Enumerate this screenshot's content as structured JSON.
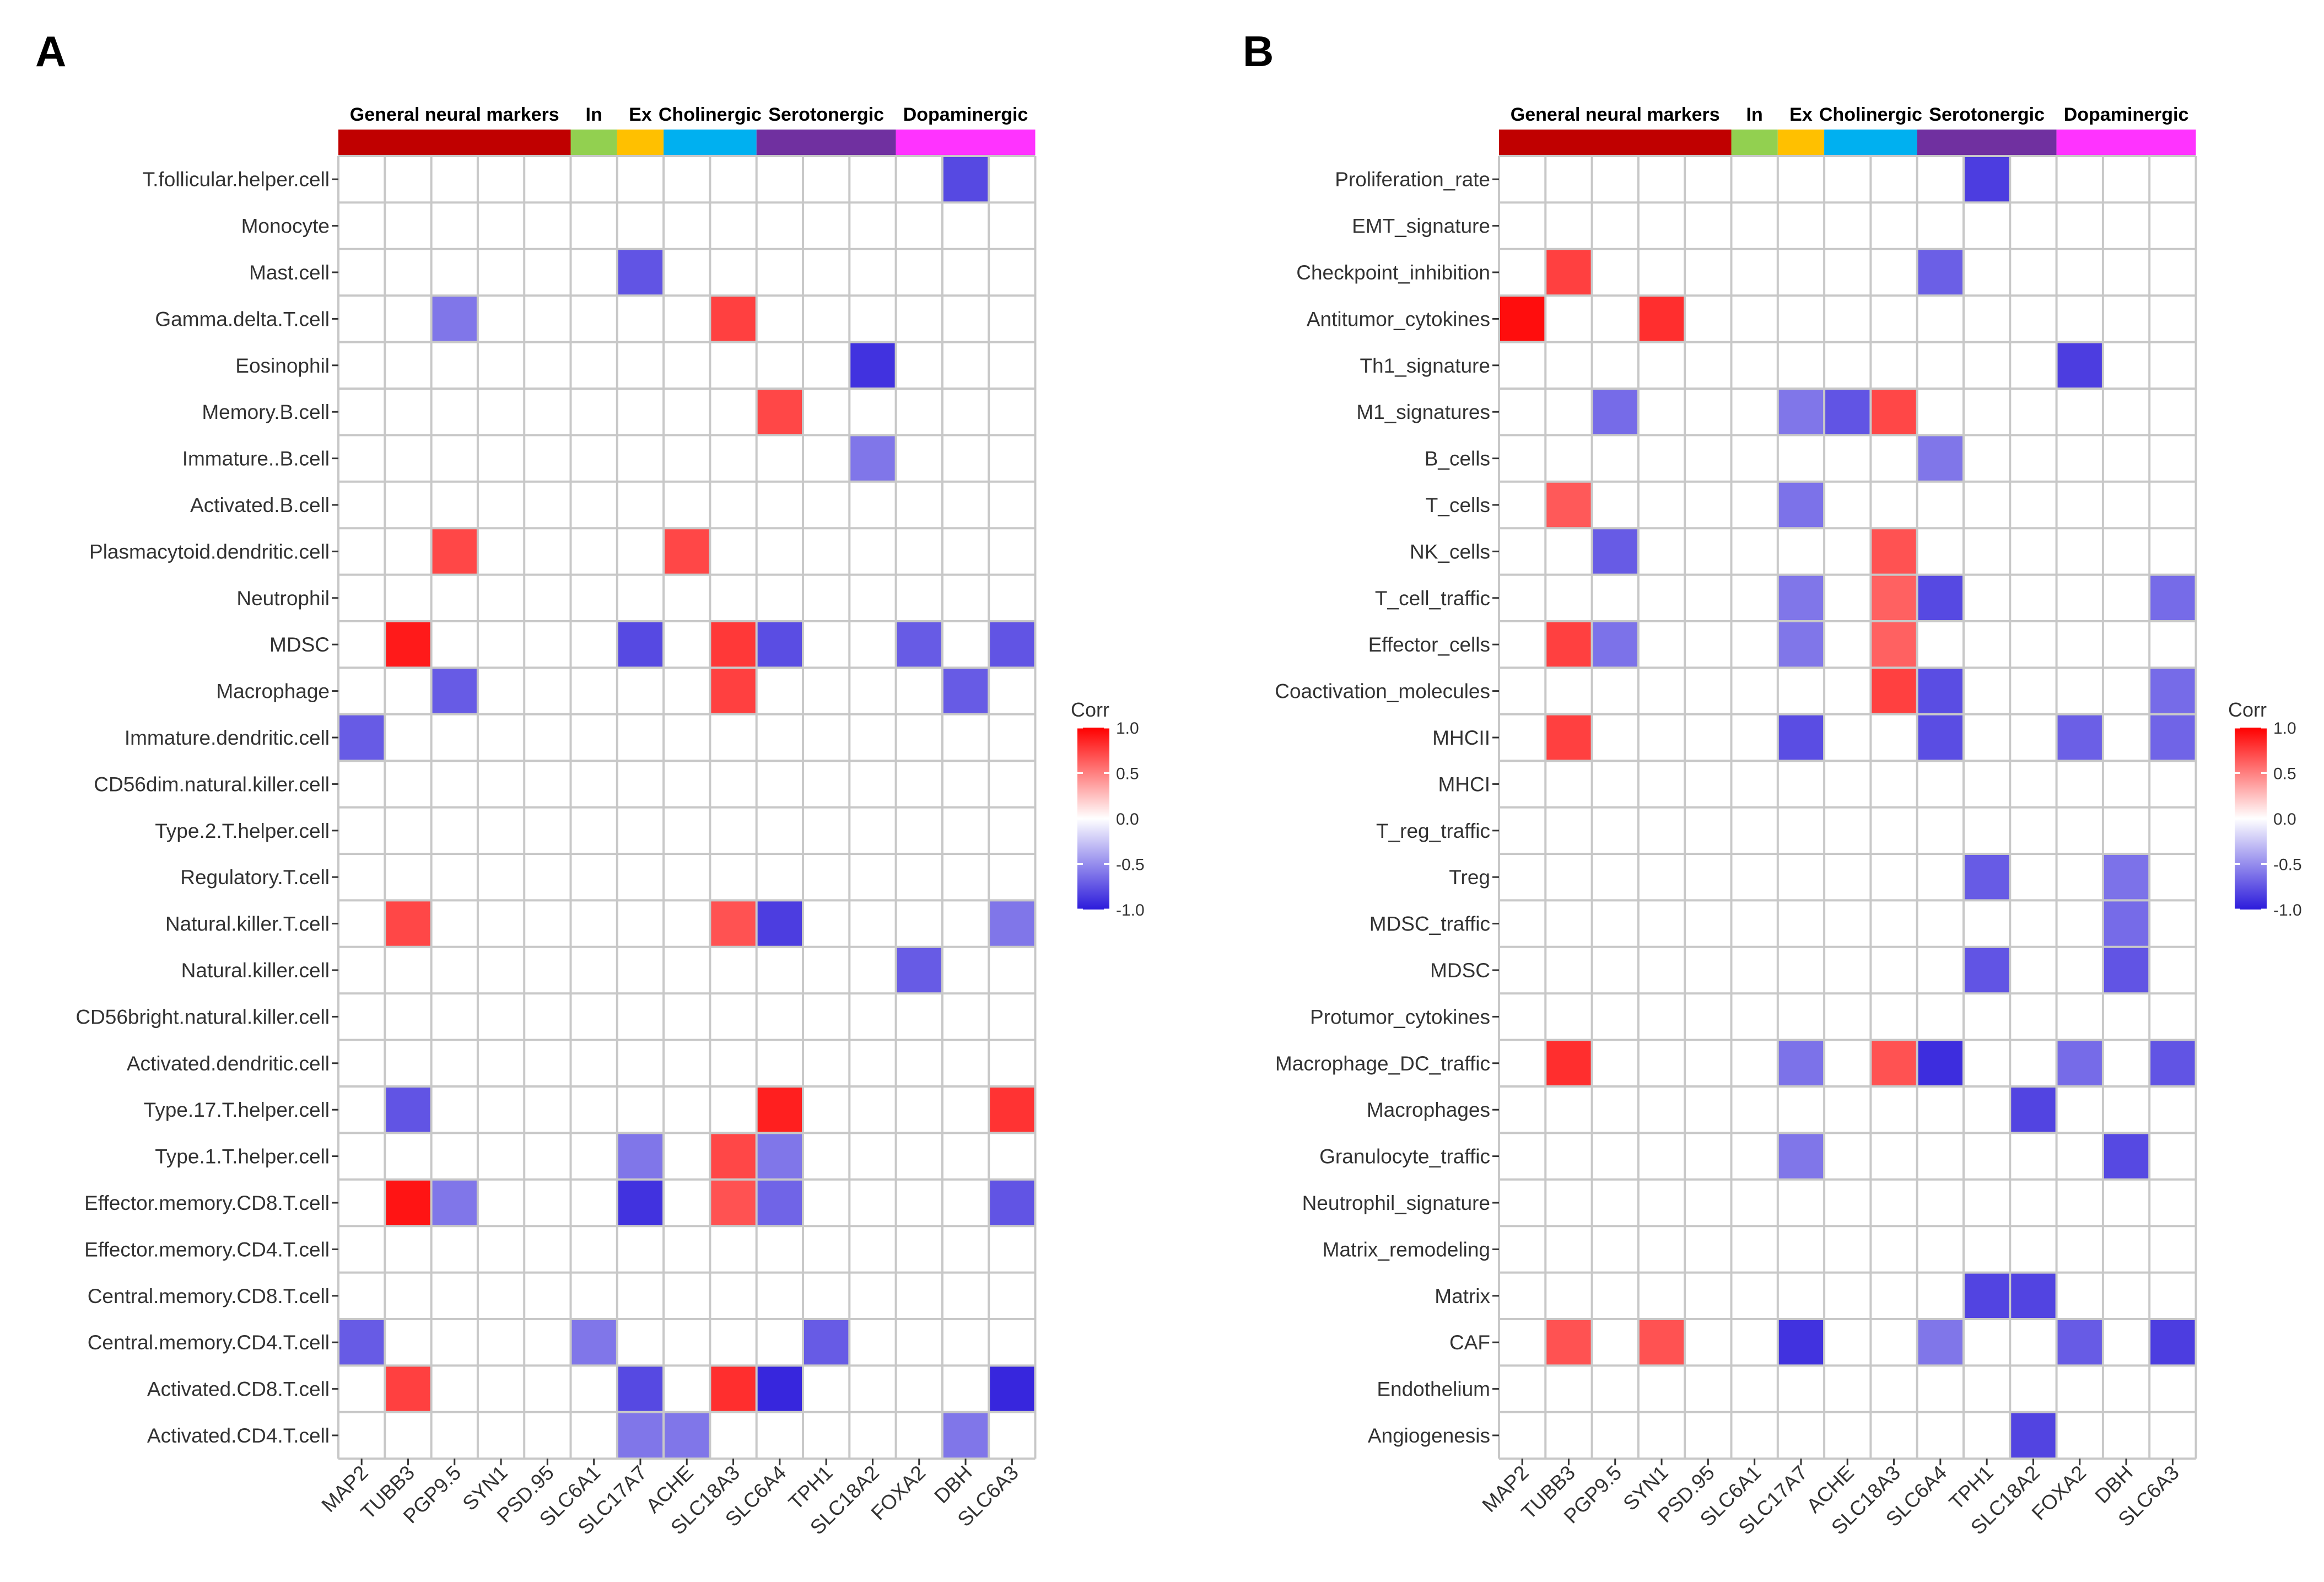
{
  "chart_data": [
    {
      "type": "heatmap",
      "panel_label": "A",
      "groups": [
        {
          "name": "General neural markers",
          "color": "#C00000",
          "genes": [
            "MAP2",
            "TUBB3",
            "PGP9.5",
            "SYN1",
            "PSD.95"
          ]
        },
        {
          "name": "In",
          "color": "#92D050",
          "genes": [
            "SLC6A1"
          ]
        },
        {
          "name": "Ex",
          "color": "#FFC000",
          "genes": [
            "SLC17A7"
          ]
        },
        {
          "name": "Cholinergic",
          "color": "#00B0F0",
          "genes": [
            "ACHE",
            "SLC18A3"
          ]
        },
        {
          "name": "Serotonergic",
          "color": "#7030A0",
          "genes": [
            "SLC6A4",
            "TPH1",
            "SLC18A2"
          ]
        },
        {
          "name": "Dopaminergic",
          "color": "#FF33FF",
          "genes": [
            "FOXA2",
            "DBH",
            "SLC6A3"
          ]
        }
      ],
      "columns": [
        "MAP2",
        "TUBB3",
        "PGP9.5",
        "SYN1",
        "PSD.95",
        "SLC6A1",
        "SLC17A7",
        "ACHE",
        "SLC18A3",
        "SLC6A4",
        "TPH1",
        "SLC18A2",
        "FOXA2",
        "DBH",
        "SLC6A3"
      ],
      "rows": [
        "T.follicular.helper.cell",
        "Monocyte",
        "Mast.cell",
        "Gamma.delta.T.cell",
        "Eosinophil",
        "Memory.B.cell",
        "Immature..B.cell",
        "Activated.B.cell",
        "Plasmacytoid.dendritic.cell",
        "Neutrophil",
        "MDSC",
        "Macrophage",
        "Immature.dendritic.cell",
        "CD56dim.natural.killer.cell",
        "Type.2.T.helper.cell",
        "Regulatory.T.cell",
        "Natural.killer.T.cell",
        "Natural.killer.cell",
        "CD56bright.natural.killer.cell",
        "Activated.dendritic.cell",
        "Type.17.T.helper.cell",
        "Type.1.T.helper.cell",
        "Effector.memory.CD8.T.cell",
        "Effector.memory.CD4.T.cell",
        "Central.memory.CD8.T.cell",
        "Central.memory.CD4.T.cell",
        "Activated.CD8.T.cell",
        "Activated.CD4.T.cell"
      ],
      "cells": [
        {
          "row": "T.follicular.helper.cell",
          "col": "DBH",
          "value": -0.8
        },
        {
          "row": "Mast.cell",
          "col": "SLC17A7",
          "value": -0.75
        },
        {
          "row": "Gamma.delta.T.cell",
          "col": "PGP9.5",
          "value": -0.6
        },
        {
          "row": "Gamma.delta.T.cell",
          "col": "SLC18A3",
          "value": 0.75
        },
        {
          "row": "Eosinophil",
          "col": "SLC18A2",
          "value": -0.9
        },
        {
          "row": "Memory.B.cell",
          "col": "SLC6A4",
          "value": 0.72
        },
        {
          "row": "Immature..B.cell",
          "col": "SLC18A2",
          "value": -0.6
        },
        {
          "row": "Plasmacytoid.dendritic.cell",
          "col": "PGP9.5",
          "value": 0.72
        },
        {
          "row": "Plasmacytoid.dendritic.cell",
          "col": "ACHE",
          "value": 0.72
        },
        {
          "row": "MDSC",
          "col": "TUBB3",
          "value": 0.9
        },
        {
          "row": "MDSC",
          "col": "SLC17A7",
          "value": -0.8
        },
        {
          "row": "MDSC",
          "col": "SLC18A3",
          "value": 0.78
        },
        {
          "row": "MDSC",
          "col": "SLC6A4",
          "value": -0.78
        },
        {
          "row": "MDSC",
          "col": "FOXA2",
          "value": -0.72
        },
        {
          "row": "MDSC",
          "col": "SLC6A3",
          "value": -0.75
        },
        {
          "row": "Macrophage",
          "col": "PGP9.5",
          "value": -0.72
        },
        {
          "row": "Macrophage",
          "col": "SLC18A3",
          "value": 0.75
        },
        {
          "row": "Macrophage",
          "col": "DBH",
          "value": -0.72
        },
        {
          "row": "Immature.dendritic.cell",
          "col": "MAP2",
          "value": -0.72
        },
        {
          "row": "Natural.killer.T.cell",
          "col": "TUBB3",
          "value": 0.72
        },
        {
          "row": "Natural.killer.T.cell",
          "col": "SLC18A3",
          "value": 0.68
        },
        {
          "row": "Natural.killer.T.cell",
          "col": "SLC6A4",
          "value": -0.85
        },
        {
          "row": "Natural.killer.T.cell",
          "col": "SLC6A3",
          "value": -0.6
        },
        {
          "row": "Natural.killer.cell",
          "col": "FOXA2",
          "value": -0.72
        },
        {
          "row": "Type.17.T.helper.cell",
          "col": "TUBB3",
          "value": -0.75
        },
        {
          "row": "Type.17.T.helper.cell",
          "col": "SLC6A4",
          "value": 0.88
        },
        {
          "row": "Type.17.T.helper.cell",
          "col": "SLC6A3",
          "value": 0.8
        },
        {
          "row": "Type.1.T.helper.cell",
          "col": "SLC17A7",
          "value": -0.6
        },
        {
          "row": "Type.1.T.helper.cell",
          "col": "SLC18A3",
          "value": 0.72
        },
        {
          "row": "Type.1.T.helper.cell",
          "col": "SLC6A4",
          "value": -0.6
        },
        {
          "row": "Effector.memory.CD8.T.cell",
          "col": "TUBB3",
          "value": 0.92
        },
        {
          "row": "Effector.memory.CD8.T.cell",
          "col": "PGP9.5",
          "value": -0.6
        },
        {
          "row": "Effector.memory.CD8.T.cell",
          "col": "SLC17A7",
          "value": -0.9
        },
        {
          "row": "Effector.memory.CD8.T.cell",
          "col": "SLC18A3",
          "value": 0.68
        },
        {
          "row": "Effector.memory.CD8.T.cell",
          "col": "SLC6A4",
          "value": -0.68
        },
        {
          "row": "Effector.memory.CD8.T.cell",
          "col": "SLC6A3",
          "value": -0.75
        },
        {
          "row": "Central.memory.CD4.T.cell",
          "col": "MAP2",
          "value": -0.72
        },
        {
          "row": "Central.memory.CD4.T.cell",
          "col": "SLC6A1",
          "value": -0.6
        },
        {
          "row": "Central.memory.CD4.T.cell",
          "col": "TPH1",
          "value": -0.72
        },
        {
          "row": "Activated.CD8.T.cell",
          "col": "TUBB3",
          "value": 0.75
        },
        {
          "row": "Activated.CD8.T.cell",
          "col": "SLC17A7",
          "value": -0.8
        },
        {
          "row": "Activated.CD8.T.cell",
          "col": "SLC18A3",
          "value": 0.82
        },
        {
          "row": "Activated.CD8.T.cell",
          "col": "SLC6A4",
          "value": -0.95
        },
        {
          "row": "Activated.CD8.T.cell",
          "col": "SLC6A3",
          "value": -0.95
        },
        {
          "row": "Activated.CD4.T.cell",
          "col": "SLC17A7",
          "value": -0.6
        },
        {
          "row": "Activated.CD4.T.cell",
          "col": "ACHE",
          "value": -0.6
        },
        {
          "row": "Activated.CD4.T.cell",
          "col": "DBH",
          "value": -0.6
        }
      ],
      "legend": {
        "title": "Corr",
        "ticks": [
          "1.0",
          "0.5",
          "0.0",
          "-0.5",
          "-1.0"
        ],
        "range": [
          -1,
          1
        ],
        "colors": {
          "low": "#2C1BDB",
          "mid": "#FFFFFF",
          "high": "#FF0000"
        }
      }
    },
    {
      "type": "heatmap",
      "panel_label": "B",
      "groups": [
        {
          "name": "General neural markers",
          "color": "#C00000",
          "genes": [
            "MAP2",
            "TUBB3",
            "PGP9.5",
            "SYN1",
            "PSD.95"
          ]
        },
        {
          "name": "In",
          "color": "#92D050",
          "genes": [
            "SLC6A1"
          ]
        },
        {
          "name": "Ex",
          "color": "#FFC000",
          "genes": [
            "SLC17A7"
          ]
        },
        {
          "name": "Cholinergic",
          "color": "#00B0F0",
          "genes": [
            "ACHE",
            "SLC18A3"
          ]
        },
        {
          "name": "Serotonergic",
          "color": "#7030A0",
          "genes": [
            "SLC6A4",
            "TPH1",
            "SLC18A2"
          ]
        },
        {
          "name": "Dopaminergic",
          "color": "#FF33FF",
          "genes": [
            "FOXA2",
            "DBH",
            "SLC6A3"
          ]
        }
      ],
      "columns": [
        "MAP2",
        "TUBB3",
        "PGP9.5",
        "SYN1",
        "PSD.95",
        "SLC6A1",
        "SLC17A7",
        "ACHE",
        "SLC18A3",
        "SLC6A4",
        "TPH1",
        "SLC18A2",
        "FOXA2",
        "DBH",
        "SLC6A3"
      ],
      "rows": [
        "Proliferation_rate",
        "EMT_signature",
        "Checkpoint_inhibition",
        "Antitumor_cytokines",
        "Th1_signature",
        "M1_signatures",
        "B_cells",
        "T_cells",
        "NK_cells",
        "T_cell_traffic",
        "Effector_cells",
        "Coactivation_molecules",
        "MHCII",
        "MHCI",
        "T_reg_traffic",
        "Treg",
        "MDSC_traffic",
        "MDSC",
        "Protumor_cytokines",
        "Macrophage_DC_traffic",
        "Macrophages",
        "Granulocyte_traffic",
        "Neutrophil_signature",
        "Matrix_remodeling",
        "Matrix",
        "CAF",
        "Endothelium",
        "Angiogenesis"
      ],
      "cells": [
        {
          "row": "Proliferation_rate",
          "col": "TPH1",
          "value": -0.85
        },
        {
          "row": "Checkpoint_inhibition",
          "col": "TUBB3",
          "value": 0.75
        },
        {
          "row": "Checkpoint_inhibition",
          "col": "SLC6A4",
          "value": -0.7
        },
        {
          "row": "Antitumor_cytokines",
          "col": "MAP2",
          "value": 0.95
        },
        {
          "row": "Antitumor_cytokines",
          "col": "SYN1",
          "value": 0.82
        },
        {
          "row": "Th1_signature",
          "col": "FOXA2",
          "value": -0.85
        },
        {
          "row": "M1_signatures",
          "col": "PGP9.5",
          "value": -0.65
        },
        {
          "row": "M1_signatures",
          "col": "SLC17A7",
          "value": -0.6
        },
        {
          "row": "M1_signatures",
          "col": "ACHE",
          "value": -0.75
        },
        {
          "row": "M1_signatures",
          "col": "SLC18A3",
          "value": 0.72
        },
        {
          "row": "B_cells",
          "col": "SLC6A4",
          "value": -0.6
        },
        {
          "row": "T_cells",
          "col": "TUBB3",
          "value": 0.65
        },
        {
          "row": "T_cells",
          "col": "SLC17A7",
          "value": -0.62
        },
        {
          "row": "NK_cells",
          "col": "PGP9.5",
          "value": -0.72
        },
        {
          "row": "NK_cells",
          "col": "SLC18A3",
          "value": 0.68
        },
        {
          "row": "T_cell_traffic",
          "col": "SLC17A7",
          "value": -0.6
        },
        {
          "row": "T_cell_traffic",
          "col": "SLC18A3",
          "value": 0.62
        },
        {
          "row": "T_cell_traffic",
          "col": "SLC6A4",
          "value": -0.8
        },
        {
          "row": "T_cell_traffic",
          "col": "SLC6A3",
          "value": -0.65
        },
        {
          "row": "Effector_cells",
          "col": "TUBB3",
          "value": 0.75
        },
        {
          "row": "Effector_cells",
          "col": "PGP9.5",
          "value": -0.62
        },
        {
          "row": "Effector_cells",
          "col": "SLC17A7",
          "value": -0.6
        },
        {
          "row": "Effector_cells",
          "col": "SLC18A3",
          "value": 0.62
        },
        {
          "row": "Coactivation_molecules",
          "col": "SLC18A3",
          "value": 0.75
        },
        {
          "row": "Coactivation_molecules",
          "col": "SLC6A4",
          "value": -0.78
        },
        {
          "row": "Coactivation_molecules",
          "col": "SLC6A3",
          "value": -0.65
        },
        {
          "row": "MHCII",
          "col": "TUBB3",
          "value": 0.75
        },
        {
          "row": "MHCII",
          "col": "SLC17A7",
          "value": -0.78
        },
        {
          "row": "MHCII",
          "col": "SLC6A4",
          "value": -0.78
        },
        {
          "row": "MHCII",
          "col": "FOXA2",
          "value": -0.7
        },
        {
          "row": "MHCII",
          "col": "SLC6A3",
          "value": -0.68
        },
        {
          "row": "Treg",
          "col": "TPH1",
          "value": -0.72
        },
        {
          "row": "Treg",
          "col": "DBH",
          "value": -0.62
        },
        {
          "row": "MDSC_traffic",
          "col": "DBH",
          "value": -0.65
        },
        {
          "row": "MDSC",
          "col": "TPH1",
          "value": -0.75
        },
        {
          "row": "MDSC",
          "col": "DBH",
          "value": -0.75
        },
        {
          "row": "Macrophage_DC_traffic",
          "col": "TUBB3",
          "value": 0.82
        },
        {
          "row": "Macrophage_DC_traffic",
          "col": "SLC17A7",
          "value": -0.62
        },
        {
          "row": "Macrophage_DC_traffic",
          "col": "SLC18A3",
          "value": 0.68
        },
        {
          "row": "Macrophage_DC_traffic",
          "col": "SLC6A4",
          "value": -0.92
        },
        {
          "row": "Macrophage_DC_traffic",
          "col": "FOXA2",
          "value": -0.65
        },
        {
          "row": "Macrophage_DC_traffic",
          "col": "SLC6A3",
          "value": -0.75
        },
        {
          "row": "Macrophages",
          "col": "SLC18A2",
          "value": -0.82
        },
        {
          "row": "Granulocyte_traffic",
          "col": "SLC17A7",
          "value": -0.6
        },
        {
          "row": "Granulocyte_traffic",
          "col": "DBH",
          "value": -0.8
        },
        {
          "row": "Matrix",
          "col": "TPH1",
          "value": -0.82
        },
        {
          "row": "Matrix",
          "col": "SLC18A2",
          "value": -0.82
        },
        {
          "row": "CAF",
          "col": "TUBB3",
          "value": 0.68
        },
        {
          "row": "CAF",
          "col": "SYN1",
          "value": 0.68
        },
        {
          "row": "CAF",
          "col": "SLC17A7",
          "value": -0.9
        },
        {
          "row": "CAF",
          "col": "SLC6A4",
          "value": -0.6
        },
        {
          "row": "CAF",
          "col": "FOXA2",
          "value": -0.72
        },
        {
          "row": "CAF",
          "col": "SLC6A3",
          "value": -0.85
        },
        {
          "row": "Angiogenesis",
          "col": "SLC18A2",
          "value": -0.82
        }
      ],
      "legend": {
        "title": "Corr",
        "ticks": [
          "1.0",
          "0.5",
          "0.0",
          "-0.5",
          "-1.0"
        ],
        "range": [
          -1,
          1
        ],
        "colors": {
          "low": "#2C1BDB",
          "mid": "#FFFFFF",
          "high": "#FF0000"
        }
      }
    }
  ]
}
